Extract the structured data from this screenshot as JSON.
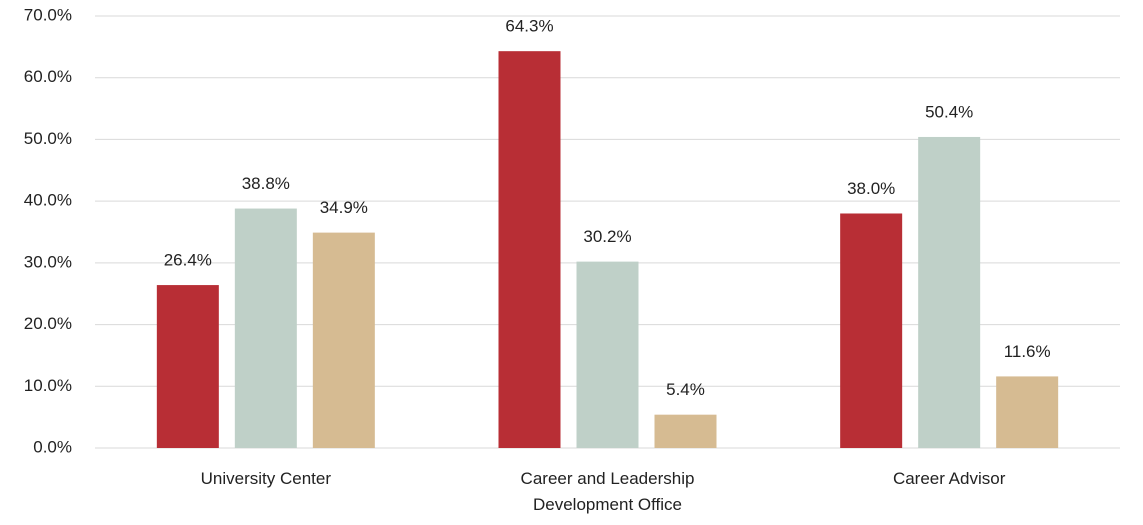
{
  "chart_data": {
    "type": "bar",
    "categories": [
      "University Center",
      "Career and Leadership Development Office",
      "Career Advisor"
    ],
    "series": [
      {
        "color": "#b82e35",
        "values": [
          26.4,
          64.3,
          38.0
        ],
        "value_labels": [
          "26.4%",
          "64.3%",
          "38.0%"
        ]
      },
      {
        "color": "#bfd0c8",
        "values": [
          38.8,
          30.2,
          50.4
        ],
        "value_labels": [
          "38.8%",
          "30.2%",
          "50.4%"
        ]
      },
      {
        "color": "#d6bb92",
        "values": [
          34.9,
          5.4,
          11.6
        ],
        "value_labels": [
          "34.9%",
          "5.4%",
          "11.6%"
        ]
      }
    ],
    "ylim": [
      0,
      70
    ],
    "yticks": [
      {
        "value": 0,
        "label": "0.0%"
      },
      {
        "value": 10,
        "label": "10.0%"
      },
      {
        "value": 20,
        "label": "20.0%"
      },
      {
        "value": 30,
        "label": "30.0%"
      },
      {
        "value": 40,
        "label": "40.0%"
      },
      {
        "value": 50,
        "label": "50.0%"
      },
      {
        "value": 60,
        "label": "60.0%"
      },
      {
        "value": 70,
        "label": "70.0%"
      }
    ],
    "grid": true
  }
}
